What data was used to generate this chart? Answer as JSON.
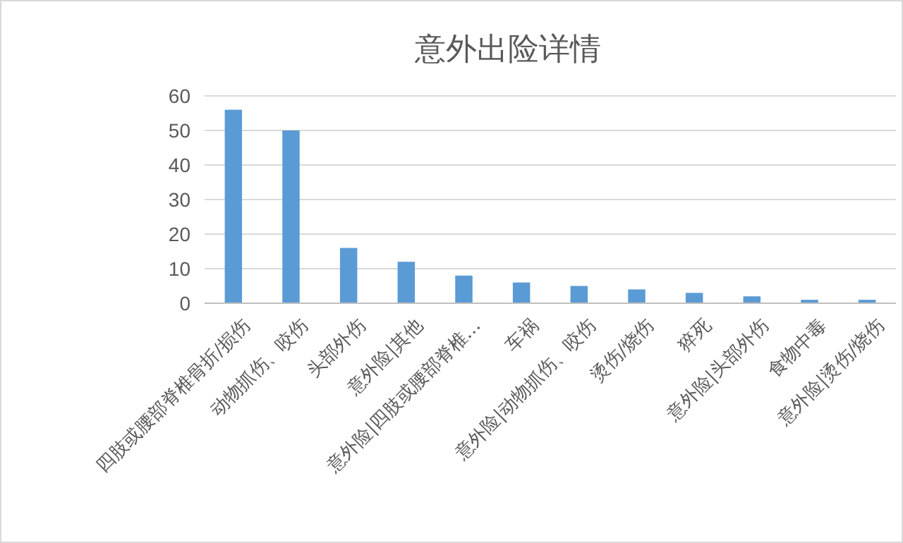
{
  "chart_data": {
    "type": "bar",
    "title": "意外出险详情",
    "categories": [
      "四肢或腰部脊椎骨折/损伤",
      "动物抓伤、咬伤",
      "头部外伤",
      "意外险|其他",
      "意外险|四肢或腰部脊椎…",
      "车祸",
      "意外险|动物抓伤、咬伤",
      "烫伤/烧伤",
      "猝死",
      "意外险|头部外伤",
      "食物中毒",
      "意外险|烫伤/烧伤"
    ],
    "values": [
      56,
      50,
      16,
      12,
      8,
      6,
      5,
      4,
      3,
      2,
      1,
      1
    ],
    "color": "#5b9bd5",
    "ylim": [
      0,
      60
    ],
    "yticks": [
      0,
      10,
      20,
      30,
      40,
      50,
      60
    ],
    "grid": "y"
  }
}
